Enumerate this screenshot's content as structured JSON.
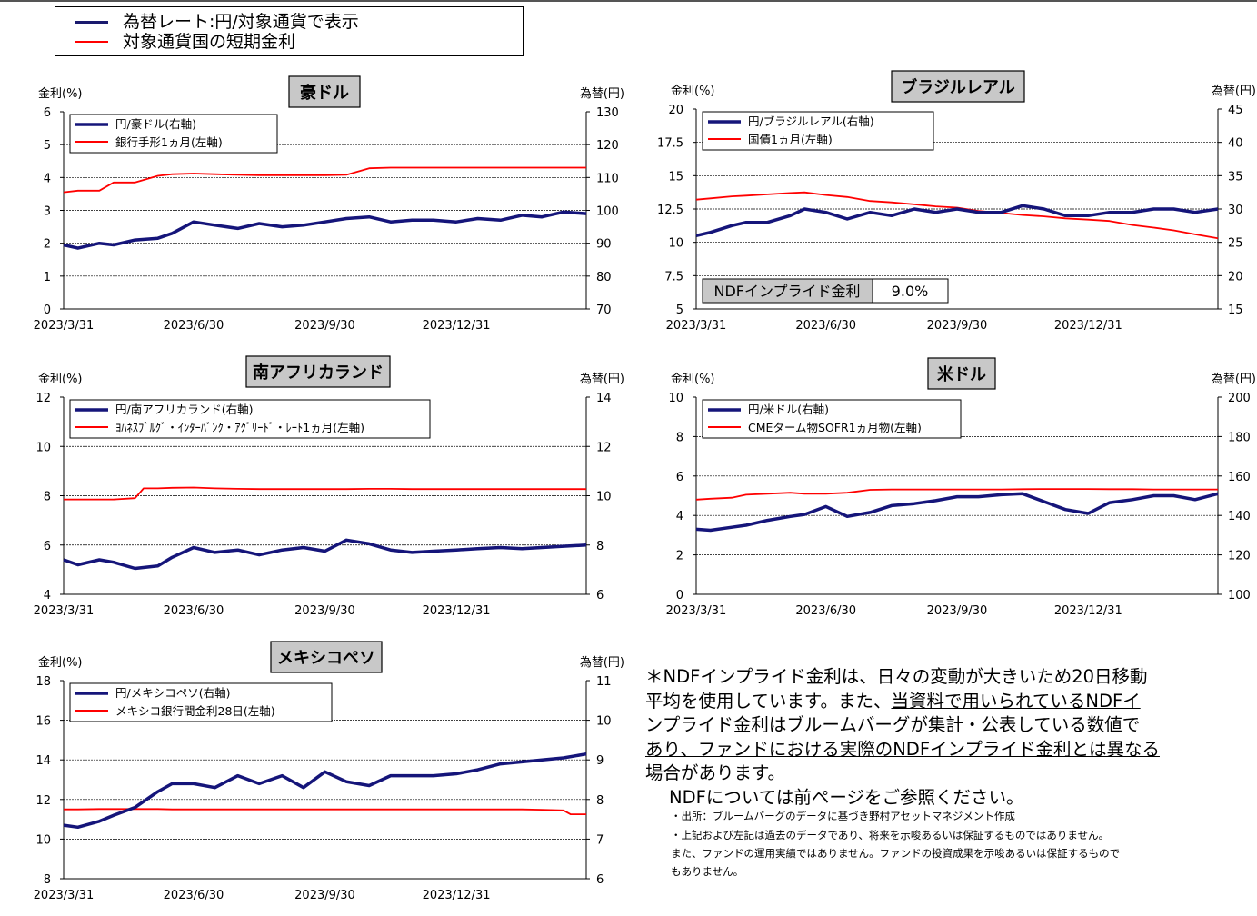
{
  "legend_top": {
    "items": [
      {
        "label": "為替レート:円/対象通貨で表示",
        "color": "#1a1a6e"
      },
      {
        "label": "対象通貨国の短期金利",
        "color": "#ff0000"
      }
    ]
  },
  "colors": {
    "fx": "#15157a",
    "rate": "#ff0000"
  },
  "chart_data": [
    {
      "type": "line",
      "title": "豪ドル",
      "ylabel_left": "金利(%)",
      "ylabel_right": "為替(円)",
      "yticks_left": [
        "6",
        "5",
        "4",
        "3",
        "2",
        "1",
        "0"
      ],
      "yticks_right": [
        "130",
        "120",
        "110",
        "100",
        "90",
        "80",
        "70"
      ],
      "ylim_left": [
        0,
        6
      ],
      "ylim_right": [
        70,
        130
      ],
      "x_ticks": [
        "2023/3/31",
        "2023/6/30",
        "2023/9/30",
        "2023/12/31"
      ],
      "x_range": [
        "2023-03-31",
        "2024-03-31"
      ],
      "grid": true,
      "series": [
        {
          "name": "円/豪ドル(右軸)",
          "axis": "right",
          "style": "fx",
          "x": [
            "2023-03-31",
            "2023-04-10",
            "2023-04-25",
            "2023-05-05",
            "2023-05-20",
            "2023-06-05",
            "2023-06-15",
            "2023-06-30",
            "2023-07-15",
            "2023-07-31",
            "2023-08-15",
            "2023-08-31",
            "2023-09-15",
            "2023-09-30",
            "2023-10-15",
            "2023-10-31",
            "2023-11-15",
            "2023-11-30",
            "2023-12-15",
            "2023-12-31",
            "2024-01-15",
            "2024-01-31",
            "2024-02-15",
            "2024-02-29",
            "2024-03-15",
            "2024-03-31"
          ],
          "y": [
            89.5,
            88.5,
            90,
            89.5,
            91,
            91.5,
            93,
            96.5,
            95.5,
            94.5,
            96,
            95,
            95.5,
            96.5,
            97.5,
            98,
            96.5,
            97,
            97,
            96.5,
            97.5,
            97,
            98.5,
            98,
            99.5,
            99
          ]
        },
        {
          "name": "銀行手形1ヵ月(左軸)",
          "axis": "left",
          "style": "rate",
          "x": [
            "2023-03-31",
            "2023-04-10",
            "2023-04-25",
            "2023-05-05",
            "2023-05-20",
            "2023-06-05",
            "2023-06-15",
            "2023-06-30",
            "2023-07-15",
            "2023-07-31",
            "2023-08-15",
            "2023-08-31",
            "2023-09-15",
            "2023-09-30",
            "2023-10-15",
            "2023-10-31",
            "2023-11-15",
            "2023-11-30",
            "2023-12-15",
            "2023-12-31",
            "2024-01-15",
            "2024-01-31",
            "2024-02-15",
            "2024-02-29",
            "2024-03-15",
            "2024-03-31"
          ],
          "y": [
            3.55,
            3.6,
            3.6,
            3.85,
            3.85,
            4.05,
            4.1,
            4.12,
            4.1,
            4.08,
            4.07,
            4.07,
            4.07,
            4.07,
            4.08,
            4.28,
            4.3,
            4.3,
            4.3,
            4.3,
            4.3,
            4.3,
            4.3,
            4.3,
            4.3,
            4.3
          ]
        }
      ]
    },
    {
      "type": "line",
      "title": "ブラジルレアル",
      "ylabel_left": "金利(%)",
      "ylabel_right": "為替(円)",
      "yticks_left": [
        "20",
        "17.5",
        "15",
        "12.5",
        "10",
        "7.5",
        "5"
      ],
      "yticks_right": [
        "45",
        "40",
        "35",
        "30",
        "25",
        "20",
        "15"
      ],
      "ylim_left": [
        5,
        20
      ],
      "ylim_right": [
        15,
        45
      ],
      "x_ticks": [
        "2023/3/31",
        "2023/6/30",
        "2023/9/30",
        "2023/12/31"
      ],
      "x_range": [
        "2023-03-31",
        "2024-03-31"
      ],
      "grid": true,
      "annotation": {
        "label": "NDFインプライド金利",
        "value": "9.0%"
      },
      "series": [
        {
          "name": "円/ブラジルレアル(右軸)",
          "axis": "right",
          "style": "fx",
          "x": [
            "2023-03-31",
            "2023-04-10",
            "2023-04-25",
            "2023-05-05",
            "2023-05-20",
            "2023-06-05",
            "2023-06-15",
            "2023-06-30",
            "2023-07-15",
            "2023-07-31",
            "2023-08-15",
            "2023-08-31",
            "2023-09-15",
            "2023-09-30",
            "2023-10-15",
            "2023-10-31",
            "2023-11-15",
            "2023-11-30",
            "2023-12-15",
            "2023-12-31",
            "2024-01-15",
            "2024-01-31",
            "2024-02-15",
            "2024-02-29",
            "2024-03-15",
            "2024-03-31"
          ],
          "y": [
            26,
            26.5,
            27.5,
            28,
            28,
            29,
            30,
            29.5,
            28.5,
            29.5,
            29,
            30,
            29.5,
            30,
            29.5,
            29.5,
            30.5,
            30,
            29,
            29,
            29.5,
            29.5,
            30,
            30,
            29.5,
            30
          ]
        },
        {
          "name": "国債1ヵ月(左軸)",
          "axis": "left",
          "style": "rate",
          "x": [
            "2023-03-31",
            "2023-04-10",
            "2023-04-25",
            "2023-05-05",
            "2023-05-20",
            "2023-06-05",
            "2023-06-15",
            "2023-06-30",
            "2023-07-15",
            "2023-07-31",
            "2023-08-15",
            "2023-08-31",
            "2023-09-15",
            "2023-09-30",
            "2023-10-15",
            "2023-10-31",
            "2023-11-15",
            "2023-11-30",
            "2023-12-15",
            "2023-12-31",
            "2024-01-15",
            "2024-01-31",
            "2024-02-15",
            "2024-02-29",
            "2024-03-15",
            "2024-03-31"
          ],
          "y": [
            13.2,
            13.3,
            13.45,
            13.5,
            13.6,
            13.7,
            13.75,
            13.55,
            13.4,
            13.1,
            13.0,
            12.85,
            12.7,
            12.6,
            12.35,
            12.2,
            12.05,
            11.95,
            11.8,
            11.7,
            11.6,
            11.3,
            11.1,
            10.9,
            10.6,
            10.3
          ]
        }
      ]
    },
    {
      "type": "line",
      "title": "南アフリカランド",
      "ylabel_left": "金利(%)",
      "ylabel_right": "為替(円)",
      "yticks_left": [
        "12",
        "10",
        "8",
        "6",
        "4"
      ],
      "yticks_right": [
        "14",
        "12",
        "10",
        "8",
        "6"
      ],
      "ylim_left": [
        4,
        12
      ],
      "ylim_right": [
        6,
        14
      ],
      "x_ticks": [
        "2023/3/31",
        "2023/6/30",
        "2023/9/30",
        "2023/12/31"
      ],
      "x_range": [
        "2023-03-31",
        "2024-03-31"
      ],
      "grid": true,
      "series": [
        {
          "name": "円/南アフリカランド(右軸)",
          "axis": "right",
          "style": "fx",
          "x": [
            "2023-03-31",
            "2023-04-10",
            "2023-04-25",
            "2023-05-05",
            "2023-05-20",
            "2023-06-05",
            "2023-06-15",
            "2023-06-30",
            "2023-07-15",
            "2023-07-31",
            "2023-08-15",
            "2023-08-31",
            "2023-09-15",
            "2023-09-30",
            "2023-10-15",
            "2023-10-31",
            "2023-11-15",
            "2023-11-30",
            "2023-12-15",
            "2023-12-31",
            "2024-01-15",
            "2024-01-31",
            "2024-02-15",
            "2024-02-29",
            "2024-03-15",
            "2024-03-31"
          ],
          "y": [
            7.4,
            7.2,
            7.4,
            7.3,
            7.05,
            7.15,
            7.5,
            7.9,
            7.7,
            7.8,
            7.6,
            7.8,
            7.9,
            7.75,
            8.2,
            8.05,
            7.8,
            7.7,
            7.75,
            7.8,
            7.85,
            7.9,
            7.85,
            7.9,
            7.95,
            8
          ]
        },
        {
          "name": "ﾖﾊﾈｽﾌﾞﾙｸﾞ・ｲﾝﾀｰﾊﾞﾝｸ・ｱｸﾞﾘｰﾄﾞ・ﾚｰﾄ1ヵ月(左軸)",
          "axis": "left",
          "style": "rate",
          "x": [
            "2023-03-31",
            "2023-04-10",
            "2023-04-25",
            "2023-05-05",
            "2023-05-20",
            "2023-05-26",
            "2023-06-05",
            "2023-06-15",
            "2023-06-30",
            "2023-07-15",
            "2023-07-31",
            "2023-08-15",
            "2023-08-31",
            "2023-09-15",
            "2023-09-30",
            "2023-10-15",
            "2023-10-31",
            "2023-11-15",
            "2023-11-30",
            "2023-12-15",
            "2023-12-31",
            "2024-01-15",
            "2024-01-31",
            "2024-02-15",
            "2024-02-29",
            "2024-03-15",
            "2024-03-31"
          ],
          "y": [
            7.85,
            7.85,
            7.85,
            7.85,
            7.9,
            8.3,
            8.3,
            8.32,
            8.33,
            8.3,
            8.28,
            8.27,
            8.27,
            8.27,
            8.27,
            8.27,
            8.28,
            8.28,
            8.27,
            8.27,
            8.27,
            8.27,
            8.27,
            8.27,
            8.27,
            8.27,
            8.27
          ]
        }
      ]
    },
    {
      "type": "line",
      "title": "米ドル",
      "ylabel_left": "金利(%)",
      "ylabel_right": "為替(円)",
      "yticks_left": [
        "10",
        "8",
        "6",
        "4",
        "2",
        "0"
      ],
      "yticks_right": [
        "200",
        "180",
        "160",
        "140",
        "120",
        "100"
      ],
      "ylim_left": [
        0,
        10
      ],
      "ylim_right": [
        100,
        200
      ],
      "x_ticks": [
        "2023/3/31",
        "2023/6/30",
        "2023/9/30",
        "2023/12/31"
      ],
      "x_range": [
        "2023-03-31",
        "2024-03-31"
      ],
      "grid": true,
      "series": [
        {
          "name": "円/米ドル(右軸)",
          "axis": "right",
          "style": "fx",
          "x": [
            "2023-03-31",
            "2023-04-10",
            "2023-04-25",
            "2023-05-05",
            "2023-05-20",
            "2023-06-05",
            "2023-06-15",
            "2023-06-30",
            "2023-07-15",
            "2023-07-31",
            "2023-08-15",
            "2023-08-31",
            "2023-09-15",
            "2023-09-30",
            "2023-10-15",
            "2023-10-31",
            "2023-11-15",
            "2023-11-30",
            "2023-12-15",
            "2023-12-31",
            "2024-01-15",
            "2024-01-31",
            "2024-02-15",
            "2024-02-29",
            "2024-03-15",
            "2024-03-31"
          ],
          "y": [
            133,
            132.5,
            134,
            135,
            137.5,
            139.5,
            140.5,
            144.5,
            139.5,
            141.5,
            145,
            146,
            147.5,
            149.5,
            149.5,
            150.5,
            151,
            147,
            143,
            141,
            146.5,
            148,
            150,
            150,
            148,
            151
          ]
        },
        {
          "name": "CMEターム物SOFR1ヵ月物(左軸)",
          "axis": "left",
          "style": "rate",
          "x": [
            "2023-03-31",
            "2023-04-10",
            "2023-04-25",
            "2023-05-05",
            "2023-05-20",
            "2023-06-05",
            "2023-06-15",
            "2023-06-30",
            "2023-07-15",
            "2023-07-31",
            "2023-08-15",
            "2023-08-31",
            "2023-09-15",
            "2023-09-30",
            "2023-10-15",
            "2023-10-31",
            "2023-11-15",
            "2023-11-30",
            "2023-12-15",
            "2023-12-31",
            "2024-01-15",
            "2024-01-31",
            "2024-02-15",
            "2024-02-29",
            "2024-03-15",
            "2024-03-31"
          ],
          "y": [
            4.8,
            4.85,
            4.9,
            5.05,
            5.1,
            5.15,
            5.1,
            5.1,
            5.15,
            5.3,
            5.32,
            5.32,
            5.32,
            5.32,
            5.32,
            5.32,
            5.33,
            5.34,
            5.34,
            5.34,
            5.33,
            5.33,
            5.32,
            5.32,
            5.32,
            5.32
          ]
        }
      ]
    },
    {
      "type": "line",
      "title": "メキシコペソ",
      "ylabel_left": "金利(%)",
      "ylabel_right": "為替(円)",
      "yticks_left": [
        "18",
        "16",
        "14",
        "12",
        "10",
        "8"
      ],
      "yticks_right": [
        "11",
        "10",
        "9",
        "8",
        "7",
        "6"
      ],
      "ylim_left": [
        8,
        18
      ],
      "ylim_right": [
        6,
        11
      ],
      "x_ticks": [
        "2023/3/31",
        "2023/6/30",
        "2023/9/30",
        "2023/12/31"
      ],
      "x_range": [
        "2023-03-31",
        "2024-03-31"
      ],
      "grid": true,
      "series": [
        {
          "name": "円/メキシコペソ(右軸)",
          "axis": "right",
          "style": "fx",
          "x": [
            "2023-03-31",
            "2023-04-10",
            "2023-04-25",
            "2023-05-05",
            "2023-05-20",
            "2023-06-05",
            "2023-06-15",
            "2023-06-30",
            "2023-07-15",
            "2023-07-31",
            "2023-08-15",
            "2023-08-31",
            "2023-09-15",
            "2023-09-30",
            "2023-10-15",
            "2023-10-31",
            "2023-11-15",
            "2023-11-30",
            "2023-12-15",
            "2023-12-31",
            "2024-01-15",
            "2024-01-31",
            "2024-02-15",
            "2024-02-29",
            "2024-03-15",
            "2024-03-31"
          ],
          "y": [
            7.35,
            7.3,
            7.45,
            7.6,
            7.8,
            8.2,
            8.4,
            8.4,
            8.3,
            8.6,
            8.4,
            8.6,
            8.3,
            8.7,
            8.45,
            8.35,
            8.6,
            8.6,
            8.6,
            8.65,
            8.75,
            8.9,
            8.95,
            9.0,
            9.05,
            9.15
          ]
        },
        {
          "name": "メキシコ銀行間金利28日(左軸)",
          "axis": "left",
          "style": "rate",
          "x": [
            "2023-03-31",
            "2023-04-10",
            "2023-04-25",
            "2023-05-05",
            "2023-05-20",
            "2023-06-05",
            "2023-06-15",
            "2023-06-30",
            "2023-07-15",
            "2023-07-31",
            "2023-08-15",
            "2023-08-31",
            "2023-09-15",
            "2023-09-30",
            "2023-10-15",
            "2023-10-31",
            "2023-11-15",
            "2023-11-30",
            "2023-12-15",
            "2023-12-31",
            "2024-01-15",
            "2024-01-31",
            "2024-02-15",
            "2024-02-29",
            "2024-03-15",
            "2024-03-20",
            "2024-03-31"
          ],
          "y": [
            11.5,
            11.5,
            11.52,
            11.52,
            11.52,
            11.52,
            11.5,
            11.5,
            11.5,
            11.5,
            11.5,
            11.5,
            11.5,
            11.5,
            11.5,
            11.5,
            11.5,
            11.5,
            11.5,
            11.5,
            11.5,
            11.5,
            11.5,
            11.48,
            11.45,
            11.25,
            11.25
          ]
        }
      ]
    }
  ],
  "note": {
    "line1": "＊NDFインプライド金利は、日々の変動が大きいため20日移動",
    "line2a": "平均を使用しています。また、",
    "line2b": "当資料で用いられているNDFイ",
    "line3": "ンプライド金利はブルームバーグが集計・公表している数値で",
    "line4": "あり、ファンドにおける実際のNDFインプライド金利とは異なる",
    "line5": "場合があります。",
    "line6": "NDFについては前ページをご参照ください。"
  },
  "disclaimer": {
    "line1": "・出所：ブルームバーグのデータに基づき野村アセットマネジメント作成",
    "line2": "・上記および左記は過去のデータであり、将来を示唆あるいは保証するものではありません。",
    "line3": "また、ファンドの運用実績ではありません。ファンドの投資成果を示唆あるいは保証するもので",
    "line4": "もありません。"
  }
}
